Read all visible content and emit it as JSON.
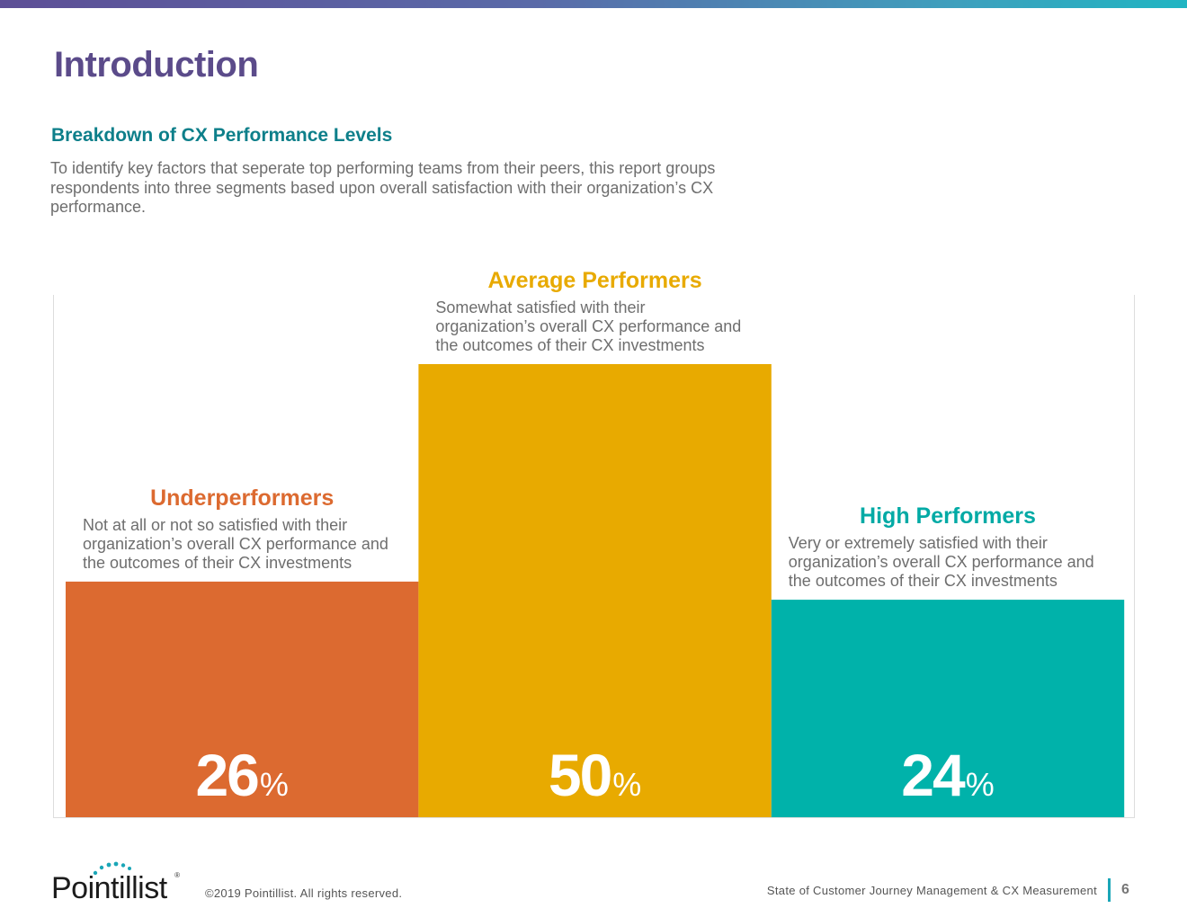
{
  "header": {
    "title": "Introduction",
    "subtitle": "Breakdown of CX Performance Levels",
    "description": "To identify key factors that seperate top performing teams from their peers, this report groups respondents into three segments based upon overall satisfaction with their organization’s CX performance."
  },
  "chart_data": {
    "type": "bar",
    "title": "Breakdown of CX Performance Levels",
    "categories": [
      "Underperformers",
      "Average Performers",
      "High Performers"
    ],
    "values": [
      26,
      50,
      24
    ],
    "value_suffix": "%",
    "descriptions": [
      "Not at all or not so satisfied with their organization’s overall CX performance and the outcomes of their CX investments",
      "Somewhat satisfied with their organization’s overall CX performance and the outcomes of their CX investments",
      "Very or extremely satisfied with their organization’s overall CX performance and the outcomes of their CX investments"
    ],
    "colors": [
      "#dc6a30",
      "#e8aa00",
      "#00b2aa"
    ],
    "label_colors": [
      "#dc6a30",
      "#e8aa00",
      "#00aaa5"
    ],
    "ylim": [
      0,
      50
    ],
    "xlabel": "",
    "ylabel": "",
    "grid": false
  },
  "footer": {
    "logo": "Pointillist",
    "copyright": "©2019 Pointillist. All rights reserved.",
    "report_title": "State of Customer Journey Management & CX Measurement",
    "page_number": "6"
  }
}
